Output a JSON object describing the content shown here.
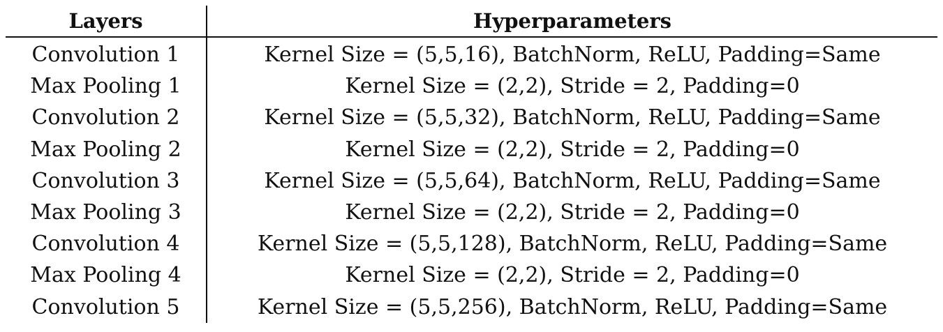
{
  "table": {
    "headers": [
      "Layers",
      "Hyperparameters"
    ],
    "rows": [
      {
        "layer": "Convolution 1",
        "params": "Kernel Size = (5,5,16), BatchNorm, ReLU, Padding=Same"
      },
      {
        "layer": "Max Pooling 1",
        "params": "Kernel Size = (2,2), Stride = 2, Padding=0"
      },
      {
        "layer": "Convolution 2",
        "params": "Kernel Size = (5,5,32), BatchNorm, ReLU, Padding=Same"
      },
      {
        "layer": "Max Pooling 2",
        "params": "Kernel Size = (2,2), Stride = 2, Padding=0"
      },
      {
        "layer": "Convolution 3",
        "params": "Kernel Size = (5,5,64), BatchNorm, ReLU, Padding=Same"
      },
      {
        "layer": "Max Pooling 3",
        "params": "Kernel Size = (2,2), Stride = 2, Padding=0"
      },
      {
        "layer": "Convolution 4",
        "params": "Kernel Size = (5,5,128), BatchNorm, ReLU, Padding=Same"
      },
      {
        "layer": "Max Pooling 4",
        "params": "Kernel Size = (2,2), Stride = 2, Padding=0"
      },
      {
        "layer": "Convolution 5",
        "params": "Kernel Size = (5,5,256), BatchNorm, ReLU, Padding=Same"
      }
    ]
  }
}
